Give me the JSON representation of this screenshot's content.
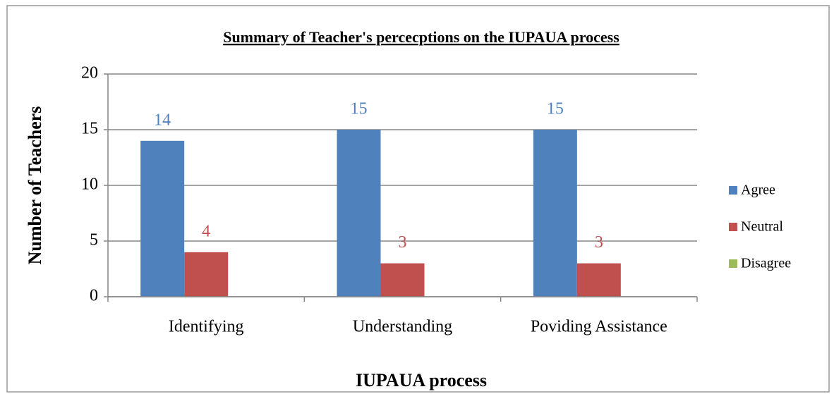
{
  "chart_data": {
    "type": "bar",
    "title": "Summary of Teacher's percecptions on the IUPAUA process",
    "x_label": "IUPAUA process",
    "y_label": "Number of Teachers",
    "categories": [
      "Identifying",
      "Understanding",
      "Poviding Assistance"
    ],
    "series": [
      {
        "name": "Agree",
        "color": "#4f81bd",
        "values": [
          14,
          15,
          15
        ]
      },
      {
        "name": "Neutral",
        "color": "#c0504d",
        "values": [
          4,
          3,
          3
        ]
      },
      {
        "name": "Disagree",
        "color": "#9bbb59",
        "values": [
          0,
          0,
          0
        ]
      }
    ],
    "ylim": [
      0,
      20
    ],
    "yticks": [
      0,
      5,
      10,
      15,
      20
    ],
    "grid": true,
    "legend": "right"
  }
}
